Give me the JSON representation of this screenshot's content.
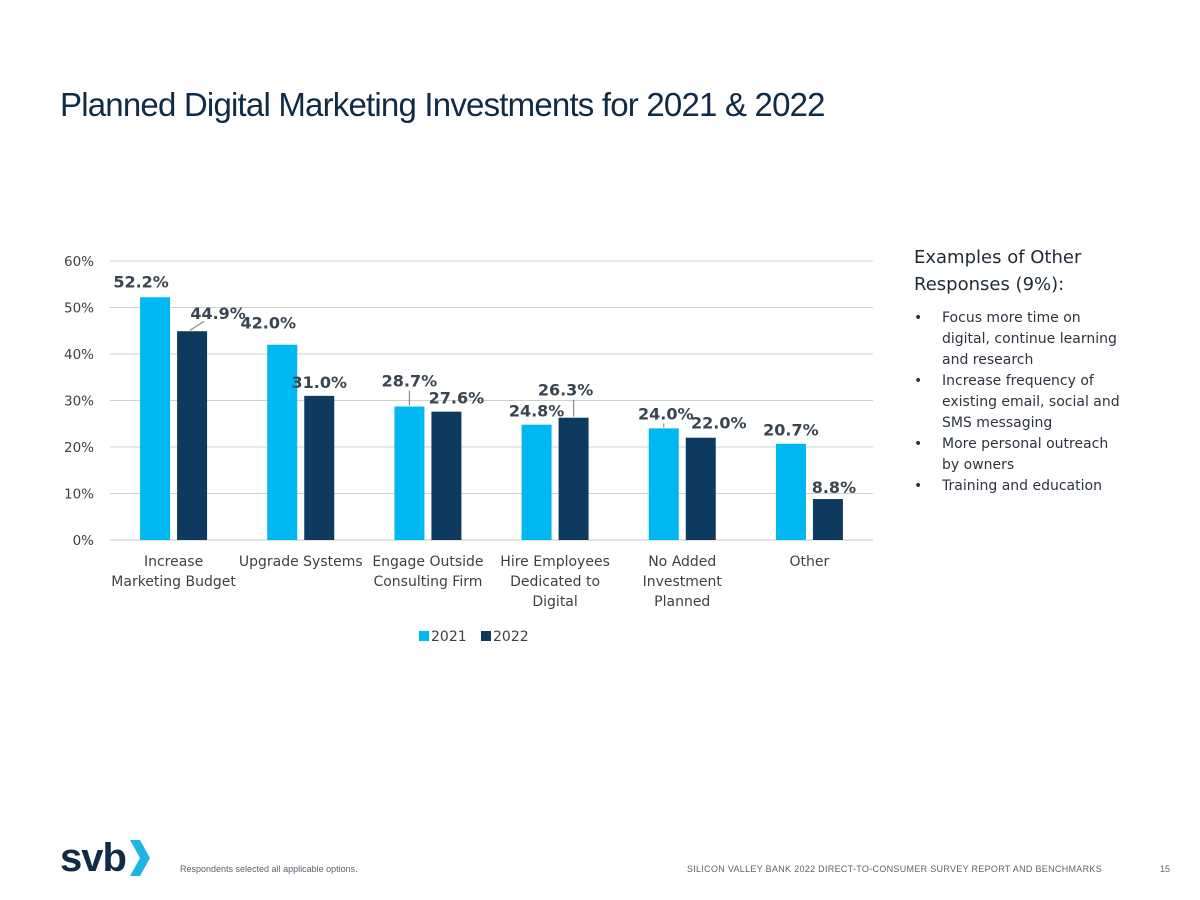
{
  "page": {
    "title": "Planned Digital Marketing Investments for 2021 & 2022",
    "footnote": "Respondents selected all applicable options.",
    "footer_text": "SILICON VALLEY BANK 2022 DIRECT-TO-CONSUMER SURVEY REPORT AND BENCHMARKS",
    "page_number": "15",
    "logo_text": "svb"
  },
  "sidebar": {
    "heading_line1": "Examples of Other",
    "heading_line2": "Responses (9%):",
    "items": [
      {
        "lines": [
          "Focus more time on",
          "digital, continue learning",
          "and research"
        ]
      },
      {
        "lines": [
          "Increase frequency of",
          "existing email, social and",
          "SMS messaging"
        ]
      },
      {
        "lines": [
          "More personal outreach",
          "by owners"
        ]
      },
      {
        "lines": [
          "Training and education"
        ]
      }
    ],
    "bullet": "•"
  },
  "colors": {
    "series_2021": "#00b8f1",
    "series_2022": "#0f3a60",
    "gridline": "#d0d0d0",
    "title": "#0f2b45"
  },
  "chart_data": {
    "type": "bar",
    "categories": [
      [
        "Increase",
        "Marketing Budget"
      ],
      [
        "Upgrade Systems"
      ],
      [
        "Engage Outside",
        "Consulting Firm"
      ],
      [
        "Hire Employees",
        "Dedicated to",
        "Digital"
      ],
      [
        "No Added",
        "Investment",
        "Planned"
      ],
      [
        "Other"
      ]
    ],
    "series": [
      {
        "name": "2021",
        "values": [
          52.2,
          42.0,
          28.7,
          24.8,
          24.0,
          20.7
        ],
        "labels": [
          "52.2%",
          "42.0%",
          "28.7%",
          "24.8%",
          "24.0%",
          "20.7%"
        ]
      },
      {
        "name": "2022",
        "values": [
          44.9,
          31.0,
          27.6,
          26.3,
          22.0,
          8.8
        ],
        "labels": [
          "44.9%",
          "31.0%",
          "27.6%",
          "26.3%",
          "22.0%",
          "8.8%"
        ]
      }
    ],
    "ylim": [
      0,
      60
    ],
    "yticks": [
      "0%",
      "10%",
      "20%",
      "30%",
      "40%",
      "50%",
      "60%"
    ],
    "grid": true,
    "legend_position": "bottom"
  }
}
